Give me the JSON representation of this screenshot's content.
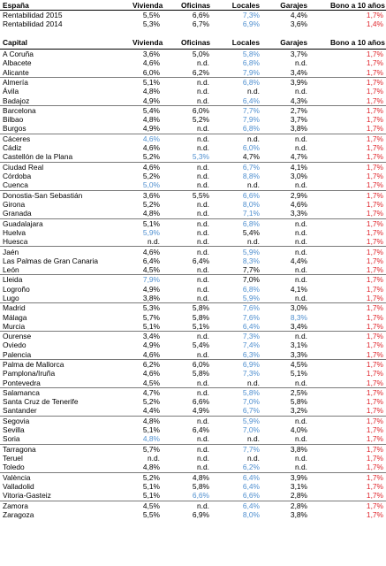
{
  "colors": {
    "text": "#000000",
    "blue": "#4f8fcf",
    "red": "#e0242b"
  },
  "summary": {
    "headers": [
      "España",
      "Vivienda",
      "Oficinas",
      "Locales",
      "Garajes",
      "Bono a 10 años"
    ],
    "rows": [
      [
        "Rentabilidad 2015",
        "5,5%",
        "6,6%",
        "7,3%",
        "4,4%",
        "1,7%"
      ],
      [
        "Rentabilidad 2014",
        "5,3%",
        "6,7%",
        "6,9%",
        "3,6%",
        "1,4%"
      ]
    ]
  },
  "capitals": {
    "headers": [
      "Capital",
      "Vivienda",
      "Oficinas",
      "Locales",
      "Garajes",
      "Bono a 10 años"
    ],
    "groups": [
      [
        [
          "A Coruña",
          "3,6%",
          "5,0%",
          "5,8%",
          "3,7%",
          "1,7%"
        ],
        [
          "Albacete",
          "4,6%",
          "n.d.",
          "6,8%",
          "n.d.",
          "1,7%"
        ],
        [
          "Alicante",
          "6,0%",
          "6,2%",
          "7,9%",
          "3,4%",
          "1,7%"
        ]
      ],
      [
        [
          "Almería",
          "5,1%",
          "n.d.",
          "6,8%",
          "3,9%",
          "1,7%"
        ],
        [
          "Ávila",
          "4,8%",
          "n.d.",
          "n.d.",
          "n.d.",
          "1,7%"
        ],
        [
          "Badajoz",
          "4,9%",
          "n.d.",
          "6,4%",
          "4,3%",
          "1,7%"
        ]
      ],
      [
        [
          "Barcelona",
          "5,4%",
          "6,0%",
          "7,7%",
          "2,7%",
          "1,7%"
        ],
        [
          "Bilbao",
          "4,8%",
          "5,2%",
          "7,9%",
          "3,7%",
          "1,7%"
        ],
        [
          "Burgos",
          "4,9%",
          "n.d.",
          "6,8%",
          "3,8%",
          "1,7%"
        ]
      ],
      [
        [
          "Cáceres",
          "4,6%",
          "n.d.",
          "n.d.",
          "n.d.",
          "1,7%"
        ],
        [
          "Cádiz",
          "4,6%",
          "n.d.",
          "6,0%",
          "n.d.",
          "1,7%"
        ],
        [
          "Castellón de la Plana",
          "5,2%",
          "5,3%",
          "4,7%",
          "4,7%",
          "1,7%"
        ]
      ],
      [
        [
          "Ciudad Real",
          "4,6%",
          "n.d.",
          "6,7%",
          "4,1%",
          "1,7%"
        ],
        [
          "Córdoba",
          "5,2%",
          "n.d.",
          "8,8%",
          "3,0%",
          "1,7%"
        ],
        [
          "Cuenca",
          "5,0%",
          "n.d.",
          "n.d.",
          "n.d.",
          "1,7%"
        ]
      ],
      [
        [
          "Donostia-San Sebastián",
          "3,6%",
          "5,5%",
          "6,6%",
          "2,9%",
          "1,7%"
        ],
        [
          "Girona",
          "5,2%",
          "n.d.",
          "8,0%",
          "4,6%",
          "1,7%"
        ],
        [
          "Granada",
          "4,8%",
          "n.d.",
          "7,1%",
          "3,3%",
          "1,7%"
        ]
      ],
      [
        [
          "Guadalajara",
          "5,1%",
          "n.d.",
          "6,8%",
          "n.d.",
          "1,7%"
        ],
        [
          "Huelva",
          "5,9%",
          "n.d.",
          "5,4%",
          "n.d.",
          "1,7%"
        ],
        [
          "Huesca",
          "n.d.",
          "n.d.",
          "n.d.",
          "n.d.",
          "1,7%"
        ]
      ],
      [
        [
          "Jaén",
          "4,6%",
          "n.d.",
          "5,9%",
          "n.d.",
          "1,7%"
        ],
        [
          "Las Palmas de Gran Canaria",
          "6,4%",
          "6,4%",
          "8,3%",
          "4,4%",
          "1,7%"
        ],
        [
          "León",
          "4,5%",
          "n.d.",
          "7,7%",
          "n.d.",
          "1,7%"
        ]
      ],
      [
        [
          "Lleida",
          "7,9%",
          "n.d.",
          "7,0%",
          "n.d.",
          "1,7%"
        ],
        [
          "Logroño",
          "4,9%",
          "n.d.",
          "6,8%",
          "4,1%",
          "1,7%"
        ],
        [
          "Lugo",
          "3,8%",
          "n.d.",
          "5,9%",
          "n.d.",
          "1,7%"
        ]
      ],
      [
        [
          "Madrid",
          "5,3%",
          "5,8%",
          "7,6%",
          "3,0%",
          "1,7%"
        ],
        [
          "Málaga",
          "5,7%",
          "5,8%",
          "7,6%",
          "8,3%",
          "1,7%"
        ],
        [
          "Murcia",
          "5,1%",
          "5,1%",
          "6,4%",
          "3,4%",
          "1,7%"
        ]
      ],
      [
        [
          "Ourense",
          "3,4%",
          "n.d.",
          "7,3%",
          "n.d.",
          "1,7%"
        ],
        [
          "Oviedo",
          "4,9%",
          "5,4%",
          "7,4%",
          "3,1%",
          "1,7%"
        ],
        [
          "Palencia",
          "4,6%",
          "n.d.",
          "6,3%",
          "3,3%",
          "1,7%"
        ]
      ],
      [
        [
          "Palma de Mallorca",
          "6,2%",
          "6,0%",
          "6,9%",
          "4,5%",
          "1,7%"
        ],
        [
          "Pamplona/Iruña",
          "4,6%",
          "5,8%",
          "7,3%",
          "5,1%",
          "1,7%"
        ],
        [
          "Pontevedra",
          "4,5%",
          "n.d.",
          "n.d.",
          "n.d.",
          "1,7%"
        ]
      ],
      [
        [
          "Salamanca",
          "4,7%",
          "n.d.",
          "5,8%",
          "2,5%",
          "1,7%"
        ],
        [
          "Santa Cruz de Tenerife",
          "5,2%",
          "6,6%",
          "7,0%",
          "5,8%",
          "1,7%"
        ],
        [
          "Santander",
          "4,4%",
          "4,9%",
          "6,7%",
          "3,2%",
          "1,7%"
        ]
      ],
      [
        [
          "Segovia",
          "4,8%",
          "n.d.",
          "5,9%",
          "n.d.",
          "1,7%"
        ],
        [
          "Sevilla",
          "5,1%",
          "6,4%",
          "7,0%",
          "4,0%",
          "1,7%"
        ],
        [
          "Soria",
          "4,8%",
          "n.d.",
          "n.d.",
          "n.d.",
          "1,7%"
        ]
      ],
      [
        [
          "Tarragona",
          "5,7%",
          "n.d.",
          "7,7%",
          "3,8%",
          "1,7%"
        ],
        [
          "Teruel",
          "n.d.",
          "n.d.",
          "n.d.",
          "n.d.",
          "1,7%"
        ],
        [
          "Toledo",
          "4,8%",
          "n.d.",
          "6,2%",
          "n.d.",
          "1,7%"
        ]
      ],
      [
        [
          "València",
          "5,2%",
          "4,8%",
          "6,4%",
          "3,9%",
          "1,7%"
        ],
        [
          "Valladolid",
          "5,1%",
          "5,8%",
          "6,4%",
          "3,1%",
          "1,7%"
        ],
        [
          "Vitoria-Gasteiz",
          "5,1%",
          "6,6%",
          "6,6%",
          "2,8%",
          "1,7%"
        ]
      ],
      [
        [
          "Zamora",
          "4,5%",
          "n.d.",
          "6,4%",
          "2,8%",
          "1,7%"
        ],
        [
          "Zaragoza",
          "5,5%",
          "6,9%",
          "8,0%",
          "3,8%",
          "1,7%"
        ]
      ]
    ]
  }
}
